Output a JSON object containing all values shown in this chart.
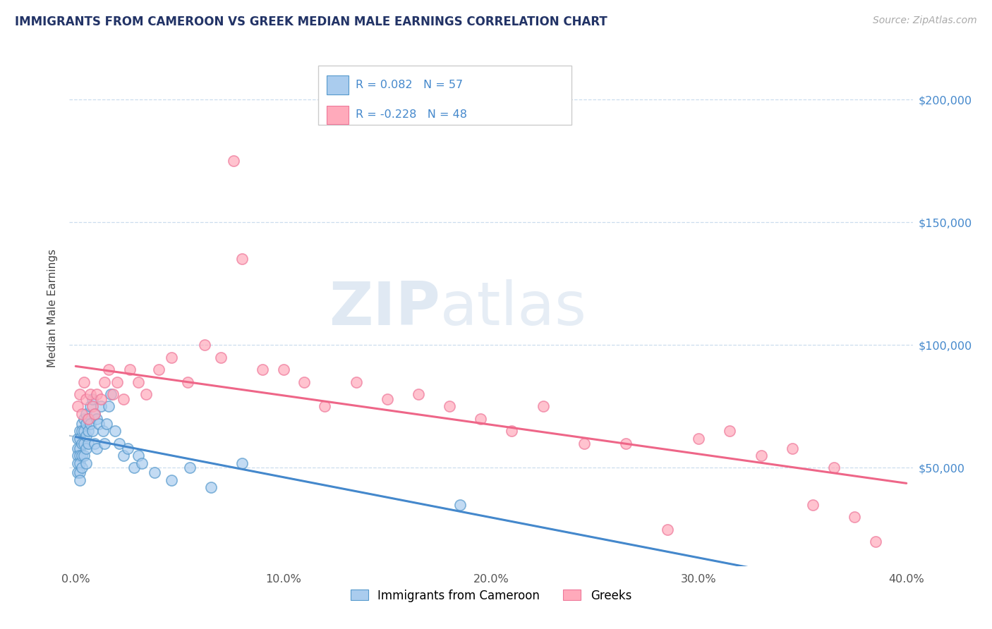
{
  "title": "IMMIGRANTS FROM CAMEROON VS GREEK MEDIAN MALE EARNINGS CORRELATION CHART",
  "source_text": "Source: ZipAtlas.com",
  "ylabel": "Median Male Earnings",
  "xlim": [
    -0.003,
    0.403
  ],
  "ylim": [
    10000,
    220000
  ],
  "yticks": [
    50000,
    100000,
    150000,
    200000
  ],
  "xticks": [
    0.0,
    0.1,
    0.2,
    0.3,
    0.4
  ],
  "xtick_labels": [
    "0.0%",
    "10.0%",
    "20.0%",
    "30.0%",
    "40.0%"
  ],
  "ytick_labels": [
    "$50,000",
    "$100,000",
    "$150,000",
    "$200,000"
  ],
  "legend_entry_1": {
    "label": "Immigrants from Cameroon",
    "R": "0.082",
    "N": "57"
  },
  "legend_entry_2": {
    "label": "Greeks",
    "R": "-0.228",
    "N": "48"
  },
  "watermark_zip": "ZIP",
  "watermark_atlas": "atlas",
  "blue_face": "#aaccee",
  "blue_edge": "#5599cc",
  "pink_face": "#ffaabb",
  "pink_edge": "#ee7799",
  "blue_line": "#4488cc",
  "pink_line": "#ee6688",
  "dashed_line": "#aabbcc",
  "grid_color": "#ccddee",
  "title_color": "#223366",
  "right_tick_color": "#4488cc",
  "bg_color": "#ffffff",
  "stats_text_color": "#4488cc",
  "blue_scatter_x": [
    0.001,
    0.001,
    0.001,
    0.001,
    0.001,
    0.002,
    0.002,
    0.002,
    0.002,
    0.002,
    0.002,
    0.002,
    0.003,
    0.003,
    0.003,
    0.003,
    0.003,
    0.004,
    0.004,
    0.004,
    0.004,
    0.005,
    0.005,
    0.005,
    0.005,
    0.005,
    0.006,
    0.006,
    0.006,
    0.007,
    0.007,
    0.008,
    0.008,
    0.009,
    0.009,
    0.01,
    0.01,
    0.011,
    0.012,
    0.013,
    0.014,
    0.015,
    0.016,
    0.017,
    0.019,
    0.021,
    0.023,
    0.025,
    0.028,
    0.03,
    0.032,
    0.038,
    0.046,
    0.055,
    0.065,
    0.08,
    0.185
  ],
  "blue_scatter_y": [
    62000,
    58000,
    55000,
    52000,
    48000,
    65000,
    62000,
    58000,
    55000,
    52000,
    48000,
    45000,
    68000,
    65000,
    60000,
    55000,
    50000,
    70000,
    65000,
    60000,
    55000,
    72000,
    68000,
    63000,
    58000,
    52000,
    70000,
    65000,
    60000,
    75000,
    68000,
    78000,
    65000,
    72000,
    60000,
    70000,
    58000,
    68000,
    75000,
    65000,
    60000,
    68000,
    75000,
    80000,
    65000,
    60000,
    55000,
    58000,
    50000,
    55000,
    52000,
    48000,
    45000,
    50000,
    42000,
    52000,
    35000
  ],
  "pink_scatter_x": [
    0.001,
    0.002,
    0.003,
    0.004,
    0.005,
    0.006,
    0.007,
    0.008,
    0.009,
    0.01,
    0.012,
    0.014,
    0.016,
    0.018,
    0.02,
    0.023,
    0.026,
    0.03,
    0.034,
    0.04,
    0.046,
    0.054,
    0.062,
    0.07,
    0.076,
    0.08,
    0.09,
    0.1,
    0.11,
    0.12,
    0.135,
    0.15,
    0.165,
    0.18,
    0.195,
    0.21,
    0.225,
    0.245,
    0.265,
    0.285,
    0.3,
    0.315,
    0.33,
    0.345,
    0.355,
    0.365,
    0.375,
    0.385
  ],
  "pink_scatter_y": [
    75000,
    80000,
    72000,
    85000,
    78000,
    70000,
    80000,
    75000,
    72000,
    80000,
    78000,
    85000,
    90000,
    80000,
    85000,
    78000,
    90000,
    85000,
    80000,
    90000,
    95000,
    85000,
    100000,
    95000,
    175000,
    135000,
    90000,
    90000,
    85000,
    75000,
    85000,
    78000,
    80000,
    75000,
    70000,
    65000,
    75000,
    60000,
    60000,
    25000,
    62000,
    65000,
    55000,
    58000,
    35000,
    50000,
    30000,
    20000
  ]
}
